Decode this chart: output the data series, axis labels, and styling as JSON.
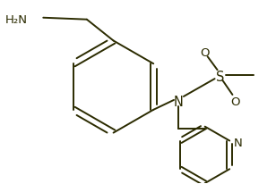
{
  "bg_color": "#ffffff",
  "line_color": "#2b2b00",
  "text_color": "#2b2b00",
  "figsize": [
    3.08,
    2.07
  ],
  "dpi": 100,
  "bond_lw": 1.4,
  "font_size": 9.5,
  "labels": {
    "nh2": "H₂N",
    "N": "N",
    "S": "S",
    "O": "O",
    "pyN": "N"
  }
}
